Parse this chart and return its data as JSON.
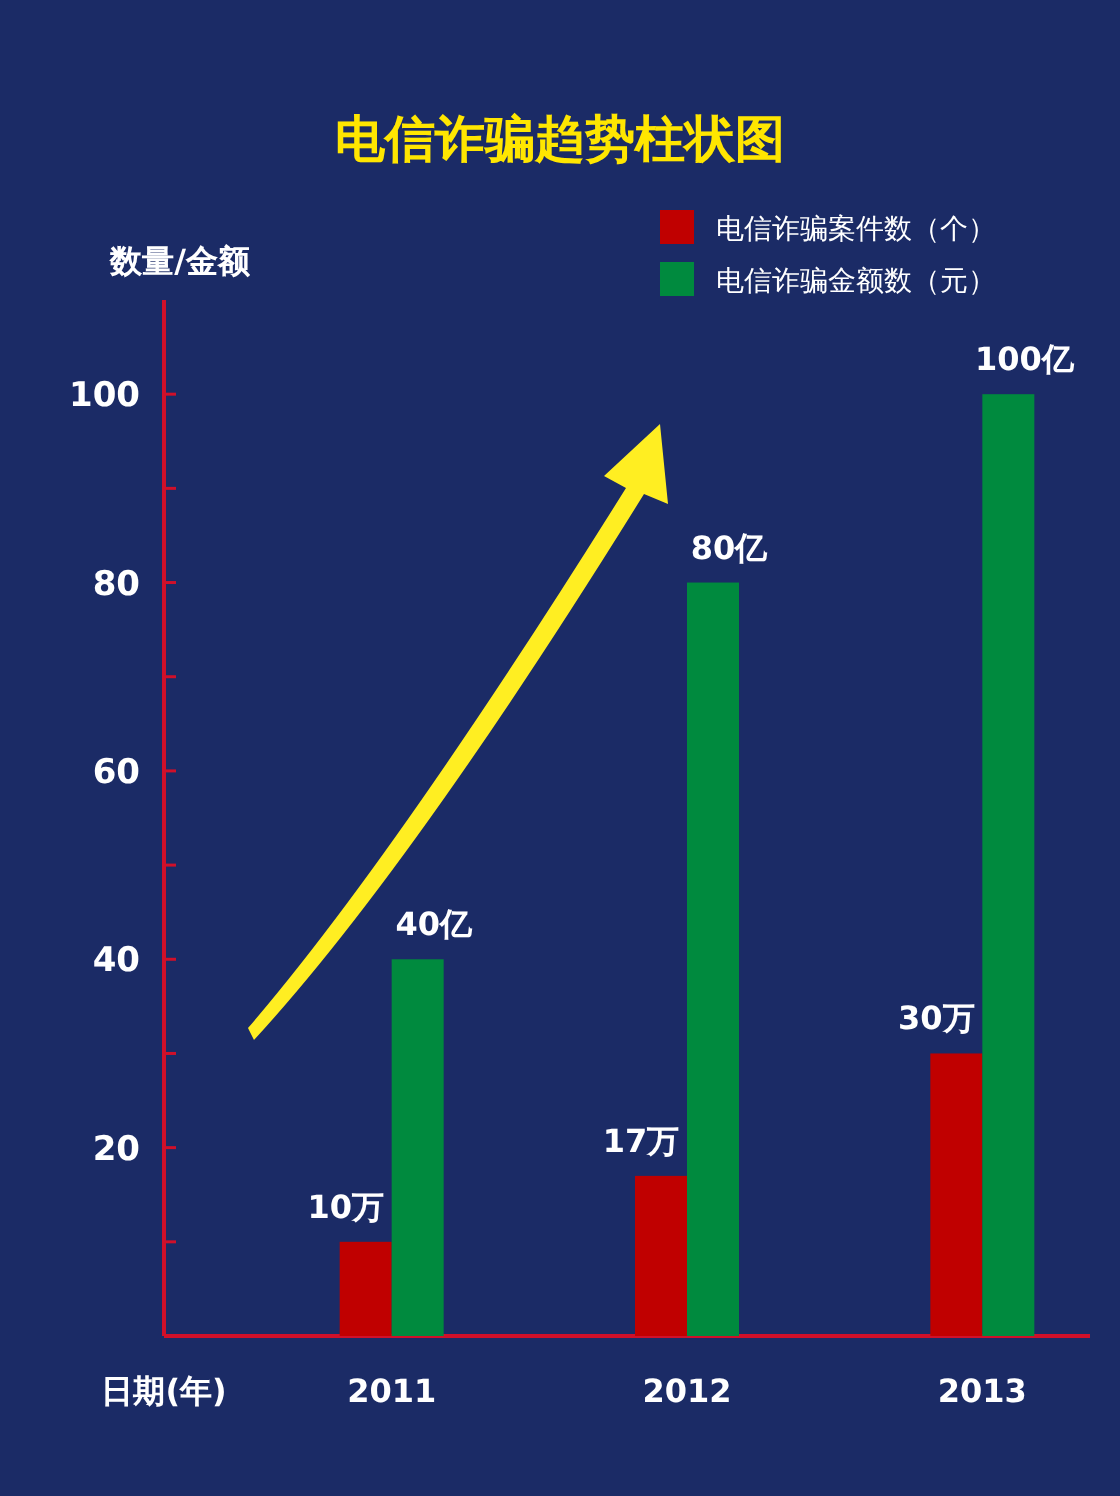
{
  "chart_data": {
    "type": "bar",
    "title": "电信诈骗趋势柱状图",
    "xlabel": "日期(年)",
    "ylabel": "数量/金额",
    "categories": [
      "2011",
      "2012",
      "2013"
    ],
    "series": [
      {
        "name": "电信诈骗案件数（个）",
        "color": "#c00000",
        "values": [
          10,
          17,
          30
        ],
        "value_labels": [
          "10万",
          "17万",
          "30万"
        ]
      },
      {
        "name": "电信诈骗金额数（元）",
        "color": "#008a3e",
        "values": [
          40,
          80,
          100
        ],
        "value_labels": [
          "40亿",
          "80亿",
          "100亿"
        ]
      }
    ],
    "ylim": [
      0,
      110
    ],
    "yticks": [
      {
        "value": 10,
        "label": null
      },
      20,
      {
        "value": 30,
        "label": null
      },
      40,
      {
        "value": 50,
        "label": null
      },
      60,
      {
        "value": 70,
        "label": null
      },
      80,
      {
        "value": 90,
        "label": null
      },
      100
    ],
    "grid": false,
    "legend": "top right"
  }
}
